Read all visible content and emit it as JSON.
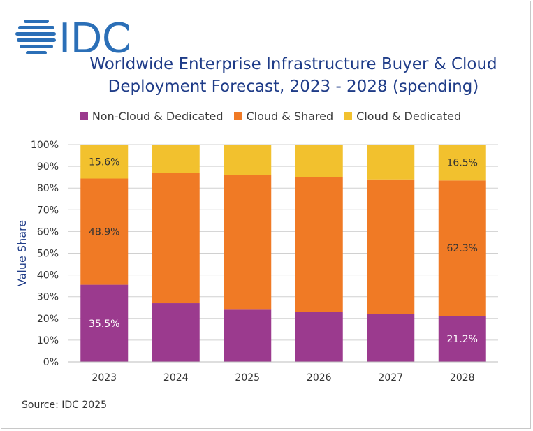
{
  "logo": {
    "text": "IDC",
    "color": "#2b6fb7"
  },
  "chart_data": {
    "type": "stacked-bar",
    "title": "Worldwide Enterprise Infrastructure Buyer & Cloud Deployment Forecast, 2023 - 2028 (spending)",
    "title_lines": [
      "Worldwide Enterprise Infrastructure Buyer & Cloud",
      "Deployment Forecast, 2023 - 2028 (spending)"
    ],
    "ylabel": "Value  Share",
    "xlabel": "",
    "ylim": [
      0,
      100
    ],
    "yticks": [
      "0%",
      "10%",
      "20%",
      "30%",
      "40%",
      "50%",
      "60%",
      "70%",
      "80%",
      "90%",
      "100%"
    ],
    "categories": [
      "2023",
      "2024",
      "2025",
      "2026",
      "2027",
      "2028"
    ],
    "legend_position": "top",
    "series": [
      {
        "name": "Non-Cloud & Dedicated",
        "color": "#9b3a8e",
        "values": [
          35.5,
          27.0,
          24.0,
          23.0,
          22.0,
          21.2
        ]
      },
      {
        "name": "Cloud & Shared",
        "color": "#f07a25",
        "values": [
          48.9,
          60.0,
          62.0,
          62.0,
          62.0,
          62.3
        ]
      },
      {
        "name": "Cloud & Dedicated",
        "color": "#f2c12e",
        "values": [
          15.6,
          13.0,
          14.0,
          15.0,
          16.0,
          16.5
        ]
      }
    ],
    "data_labels": [
      {
        "category": "2023",
        "series": "Non-Cloud & Dedicated",
        "text": "35.5%",
        "color": "#ffffff"
      },
      {
        "category": "2023",
        "series": "Cloud & Shared",
        "text": "48.9%",
        "color": "#333333"
      },
      {
        "category": "2023",
        "series": "Cloud & Dedicated",
        "text": "15.6%",
        "color": "#333333"
      },
      {
        "category": "2028",
        "series": "Non-Cloud & Dedicated",
        "text": "21.2%",
        "color": "#ffffff"
      },
      {
        "category": "2028",
        "series": "Cloud & Shared",
        "text": "62.3%",
        "color": "#333333"
      },
      {
        "category": "2028",
        "series": "Cloud & Dedicated",
        "text": "16.5%",
        "color": "#333333"
      }
    ],
    "grid": true
  },
  "source": "Source: IDC 2025"
}
